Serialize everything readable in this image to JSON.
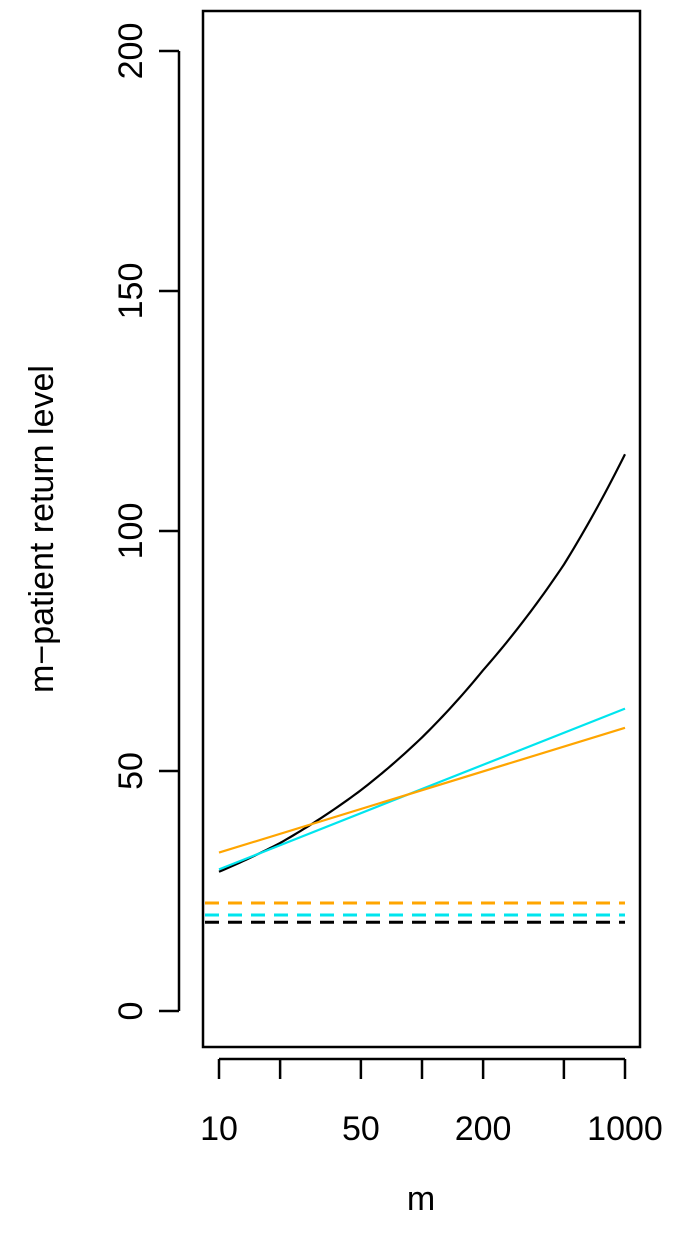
{
  "chart_data": {
    "type": "line",
    "title": "",
    "xlabel": "m",
    "ylabel": "m−patient return level",
    "x_scale": "log",
    "xlim": [
      10,
      1000
    ],
    "ylim": [
      0,
      200
    ],
    "x_ticks": [
      10,
      20,
      50,
      100,
      200,
      500,
      1000
    ],
    "x_tick_labels": [
      "10",
      "",
      "50",
      "",
      "200",
      "",
      "1000"
    ],
    "y_ticks": [
      0,
      50,
      100,
      150,
      200
    ],
    "y_tick_labels": [
      "0",
      "50",
      "100",
      "150",
      "200"
    ],
    "grid": false,
    "series": [
      {
        "color": "#000000",
        "style": "solid",
        "x": [
          10,
          20,
          50,
          100,
          200,
          500,
          1000
        ],
        "y": [
          29,
          35,
          46,
          57,
          71,
          93,
          116
        ]
      },
      {
        "color": "#00e5ee",
        "style": "solid",
        "x": [
          10,
          1000
        ],
        "y": [
          29.5,
          63
        ]
      },
      {
        "color": "#ffa500",
        "style": "solid",
        "x": [
          10,
          1000
        ],
        "y": [
          33,
          59
        ]
      },
      {
        "color": "#ffa500",
        "style": "dashed",
        "x": [
          10,
          1000
        ],
        "y": [
          22.5,
          22.5
        ]
      },
      {
        "color": "#00e5ee",
        "style": "dashed",
        "x": [
          10,
          1000
        ],
        "y": [
          20,
          20
        ]
      },
      {
        "color": "#000000",
        "style": "dashed",
        "x": [
          10,
          1000
        ],
        "y": [
          18.5,
          18.5
        ]
      }
    ]
  }
}
